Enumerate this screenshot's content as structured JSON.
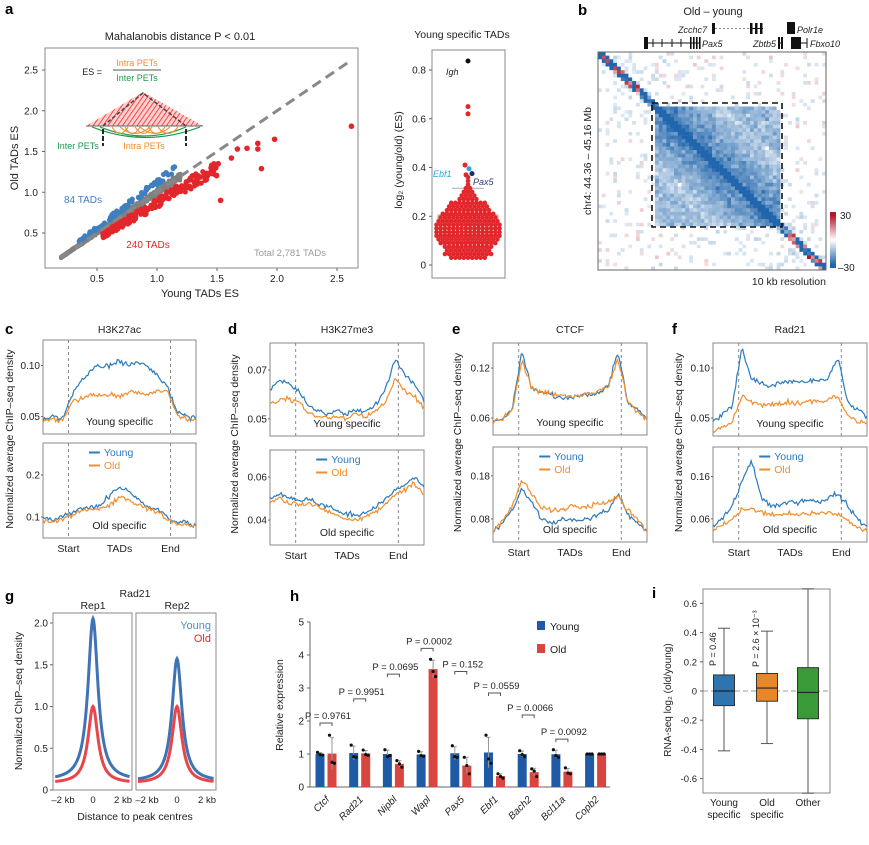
{
  "panel_labels": {
    "a": "a",
    "b": "b",
    "c": "c",
    "d": "d",
    "e": "e",
    "f": "f",
    "g": "g",
    "h": "h",
    "i": "i"
  },
  "colors": {
    "young_blue": "#2b7bbd",
    "old_orange": "#f28e2b",
    "scatter_gray": "#808080",
    "young_scatter": "#3f7fbf",
    "old_red": "#e3262b",
    "bar_young": "#1f5aa6",
    "bar_old": "#d9453f",
    "box_young": "#2e75b0",
    "box_old": "#e8872a",
    "box_other": "#3a9a3a",
    "heat_low": "#2166ac",
    "heat_high": "#b2182b"
  },
  "chart_data": [
    {
      "id": "a-scatter",
      "type": "scatter",
      "title": "Mahalanobis distance P < 0.01",
      "xlabel": "Young TADs ES",
      "ylabel": "Old TADs ES",
      "xlim": [
        0.15,
        2.75
      ],
      "ylim": [
        0.15,
        2.75
      ],
      "xticks": [
        "0.5",
        "1.0",
        "1.5",
        "2.0",
        "2.5"
      ],
      "yticks": [
        "0.5",
        "1.0",
        "1.5",
        "2.0",
        "2.5"
      ],
      "diagonal": "y = x (dashed)",
      "annotations": {
        "young_count": "84 TADs",
        "old_count": "240 TADs",
        "total": "Total 2,781 TADs"
      },
      "counts": {
        "young_specific": 84,
        "old_specific": 240,
        "total": 2781
      },
      "red_outliers": [
        [
          2.62,
          1.81
        ],
        [
          1.98,
          1.65
        ],
        [
          1.84,
          1.6
        ],
        [
          1.75,
          1.54
        ],
        [
          1.67,
          1.53
        ],
        [
          1.84,
          1.53
        ],
        [
          1.87,
          1.29
        ],
        [
          1.62,
          1.42
        ],
        [
          1.53,
          0.9
        ],
        [
          1.51,
          1.35
        ],
        [
          1.49,
          1.3
        ],
        [
          1.45,
          1.25
        ],
        [
          1.42,
          1.2
        ]
      ],
      "inset": {
        "es_label": "ES =",
        "numerator": "Intra PETs",
        "denominator": "Inter PETs",
        "inter_label": "Inter PETs",
        "intra_label": "Intra PETs"
      }
    },
    {
      "id": "a-swarm",
      "type": "swarm",
      "title": "Young specific TADs",
      "ylabel": "log₂ (young/old) (ES)",
      "ylim": [
        0,
        0.88
      ],
      "yticks": [
        "0",
        "0.2",
        "0.4",
        "0.6",
        "0.8"
      ],
      "box": {
        "q1": 0.125,
        "q3": 0.205,
        "upper_whisker": 0.315
      },
      "bins": [
        [
          0.03,
          9
        ],
        [
          0.045,
          12
        ],
        [
          0.06,
          11
        ],
        [
          0.075,
          12
        ],
        [
          0.09,
          14
        ],
        [
          0.105,
          15
        ],
        [
          0.12,
          16
        ],
        [
          0.135,
          16
        ],
        [
          0.15,
          16
        ],
        [
          0.165,
          16
        ],
        [
          0.18,
          15
        ],
        [
          0.195,
          14
        ],
        [
          0.21,
          13
        ],
        [
          0.225,
          11
        ],
        [
          0.24,
          10
        ],
        [
          0.255,
          9
        ],
        [
          0.27,
          5
        ],
        [
          0.285,
          4
        ],
        [
          0.3,
          3
        ],
        [
          0.315,
          2
        ],
        [
          0.33,
          1
        ],
        [
          0.345,
          1
        ],
        [
          0.36,
          1
        ]
      ],
      "outliers": [
        {
          "value": 0.837,
          "color": "#111111"
        },
        {
          "value": 0.65,
          "color": "#e3262b"
        },
        {
          "value": 0.62,
          "color": "#e3262b"
        },
        {
          "value": 0.41,
          "color": "#e3262b"
        },
        {
          "value": 0.395,
          "color": "#29a8e0"
        },
        {
          "value": 0.375,
          "color": "#1a2a6c"
        },
        {
          "value": 0.37,
          "color": "#e3262b"
        }
      ],
      "gene_labels": {
        "igh": "Igh",
        "ebf1": "Ebf1",
        "pax5": "Pax5"
      }
    },
    {
      "id": "b-heatmap",
      "type": "heatmap",
      "title": "Old – young",
      "ylabel": "chr4: 44.36 – 45.16 Mb",
      "resolution": "10 kb resolution",
      "colorbar": {
        "min": -30,
        "max": 30,
        "max_label": "30",
        "min_label": "–30"
      },
      "genes": {
        "zcchc7": "Zcchc7",
        "polr1e": "Polr1e",
        "pax5": "Pax5",
        "zbtb5": "Zbtb5",
        "fbxo10": "Fbxo10"
      }
    },
    {
      "id": "c",
      "type": "line",
      "title": "H3K27ac",
      "ylabel": "Normalized average ChIP–seq density",
      "xticks": [
        "Start",
        "TADs",
        "End"
      ],
      "legend": [
        "Young",
        "Old"
      ],
      "top": {
        "label": "Young specific",
        "ylim": [
          0.033,
          0.125
        ],
        "yticks": [
          {
            "v": 0.05,
            "t": "0.05"
          },
          {
            "v": 0.1,
            "t": "0.10"
          }
        ],
        "young": [
          0.047,
          0.05,
          0.047,
          0.07,
          0.085,
          0.095,
          0.1,
          0.1,
          0.105,
          0.1,
          0.105,
          0.098,
          0.09,
          0.08,
          0.055,
          0.05,
          0.048
        ],
        "old": [
          0.046,
          0.048,
          0.046,
          0.064,
          0.068,
          0.072,
          0.07,
          0.072,
          0.07,
          0.074,
          0.073,
          0.072,
          0.075,
          0.076,
          0.052,
          0.048,
          0.047
        ]
      },
      "bottom": {
        "label": "Old specific",
        "ylim": [
          0.05,
          0.276
        ],
        "yticks": [
          {
            "v": 0.1,
            "t": "0.1"
          },
          {
            "v": 0.2,
            "t": "0.2"
          }
        ],
        "young": [
          0.1,
          0.095,
          0.1,
          0.11,
          0.12,
          0.125,
          0.13,
          0.15,
          0.17,
          0.16,
          0.14,
          0.125,
          0.12,
          0.1,
          0.09,
          0.085,
          0.08
        ],
        "old": [
          0.09,
          0.09,
          0.095,
          0.105,
          0.115,
          0.118,
          0.12,
          0.13,
          0.145,
          0.14,
          0.13,
          0.12,
          0.11,
          0.095,
          0.085,
          0.08,
          0.075
        ]
      }
    },
    {
      "id": "d",
      "type": "line",
      "title": "H3K27me3",
      "ylabel": "Normalized average ChIP–seq density",
      "xticks": [
        "Start",
        "TADs",
        "End"
      ],
      "legend": [
        "Young",
        "Old"
      ],
      "top": {
        "label": "Young specific",
        "ylim": [
          0.043,
          0.081
        ],
        "yticks": [
          {
            "v": 0.05,
            "t": "0.05"
          },
          {
            "v": 0.07,
            "t": "0.07"
          }
        ],
        "young": [
          0.062,
          0.066,
          0.064,
          0.062,
          0.055,
          0.053,
          0.052,
          0.053,
          0.052,
          0.054,
          0.053,
          0.056,
          0.062,
          0.074,
          0.068,
          0.064,
          0.058
        ],
        "old": [
          0.056,
          0.058,
          0.058,
          0.057,
          0.052,
          0.051,
          0.05,
          0.051,
          0.05,
          0.052,
          0.051,
          0.053,
          0.057,
          0.066,
          0.062,
          0.059,
          0.055
        ]
      },
      "bottom": {
        "label": "Old specific",
        "ylim": [
          0.0284,
          0.0726
        ],
        "yticks": [
          {
            "v": 0.04,
            "t": "0.04"
          },
          {
            "v": 0.06,
            "t": "0.06"
          }
        ],
        "young": [
          0.05,
          0.052,
          0.05,
          0.049,
          0.05,
          0.048,
          0.046,
          0.044,
          0.043,
          0.042,
          0.044,
          0.046,
          0.05,
          0.054,
          0.056,
          0.06,
          0.055
        ],
        "old": [
          0.048,
          0.05,
          0.048,
          0.047,
          0.048,
          0.046,
          0.044,
          0.042,
          0.041,
          0.04,
          0.042,
          0.044,
          0.048,
          0.052,
          0.054,
          0.057,
          0.052
        ]
      }
    },
    {
      "id": "e",
      "type": "line",
      "title": "CTCF",
      "ylabel": "Normalized average ChIP–seq density",
      "xticks": [
        "Start",
        "TADs",
        "End"
      ],
      "legend": [
        "Young",
        "Old"
      ],
      "top": {
        "label": "Young specific",
        "ylim": [
          0.0396,
          0.15
        ],
        "yticks": [
          {
            "v": 0.06,
            "t": "0.06"
          },
          {
            "v": 0.12,
            "t": "0.12"
          }
        ],
        "young": [
          0.055,
          0.06,
          0.07,
          0.14,
          0.095,
          0.09,
          0.088,
          0.085,
          0.085,
          0.086,
          0.088,
          0.09,
          0.1,
          0.14,
          0.08,
          0.07,
          0.058
        ],
        "old": [
          0.054,
          0.06,
          0.069,
          0.13,
          0.097,
          0.091,
          0.089,
          0.086,
          0.087,
          0.087,
          0.089,
          0.091,
          0.1,
          0.13,
          0.08,
          0.068,
          0.057
        ]
      },
      "bottom": {
        "label": "Old specific",
        "ylim": [
          0.0265,
          0.247
        ],
        "yticks": [
          {
            "v": 0.08,
            "t": "0.08"
          },
          {
            "v": 0.18,
            "t": "0.18"
          }
        ],
        "young": [
          0.05,
          0.07,
          0.1,
          0.15,
          0.12,
          0.08,
          0.07,
          0.075,
          0.08,
          0.075,
          0.08,
          0.09,
          0.1,
          0.14,
          0.09,
          0.07,
          0.05
        ],
        "old": [
          0.05,
          0.075,
          0.11,
          0.17,
          0.14,
          0.11,
          0.1,
          0.1,
          0.11,
          0.105,
          0.11,
          0.115,
          0.12,
          0.13,
          0.1,
          0.08,
          0.05
        ]
      }
    },
    {
      "id": "f",
      "type": "line",
      "title": "Rad21",
      "ylabel": "Normalized average ChIP–seq density",
      "xticks": [
        "Start",
        "TADs",
        "End"
      ],
      "legend": [
        "Young",
        "Old"
      ],
      "top": {
        "label": "Young specific",
        "ylim": [
          0.032,
          0.125
        ],
        "yticks": [
          {
            "v": 0.05,
            "t": "0.05"
          },
          {
            "v": 0.1,
            "t": "0.10"
          }
        ],
        "young": [
          0.045,
          0.055,
          0.062,
          0.12,
          0.088,
          0.085,
          0.083,
          0.085,
          0.087,
          0.086,
          0.088,
          0.087,
          0.09,
          0.11,
          0.065,
          0.058,
          0.052
        ],
        "old": [
          0.037,
          0.042,
          0.046,
          0.072,
          0.066,
          0.064,
          0.063,
          0.064,
          0.066,
          0.065,
          0.067,
          0.066,
          0.068,
          0.072,
          0.052,
          0.047,
          0.044
        ]
      },
      "bottom": {
        "label": "Old specific",
        "ylim": [
          0.005,
          0.23
        ],
        "yticks": [
          {
            "v": 0.06,
            "t": "0.06"
          },
          {
            "v": 0.16,
            "t": "0.16"
          }
        ],
        "young": [
          0.04,
          0.06,
          0.09,
          0.15,
          0.2,
          0.11,
          0.09,
          0.095,
          0.1,
          0.1,
          0.105,
          0.1,
          0.11,
          0.12,
          0.09,
          0.06,
          0.04
        ],
        "old": [
          0.03,
          0.045,
          0.06,
          0.08,
          0.085,
          0.075,
          0.068,
          0.07,
          0.072,
          0.07,
          0.073,
          0.07,
          0.072,
          0.07,
          0.055,
          0.04,
          0.03
        ]
      }
    },
    {
      "id": "g",
      "type": "line",
      "title": "Rad21",
      "ylabel": "Normalized ChIP–seq density",
      "xlabel": "Distance to peak centres",
      "xticks": [
        "–2 kb",
        "0",
        "2 kb"
      ],
      "ylim": [
        0,
        2.1
      ],
      "yticks": [
        "0",
        "0.5",
        "1.0",
        "1.5",
        "2.0"
      ],
      "legend": [
        "Young",
        "Old"
      ],
      "replicates": [
        {
          "name": "Rep1",
          "young_peak": 2.05,
          "old_peak": 1.0,
          "young_base": 0.11,
          "old_base": 0.08
        },
        {
          "name": "Rep2",
          "young_peak": 1.57,
          "old_peak": 1.0,
          "young_base": 0.1,
          "old_base": 0.08
        }
      ]
    },
    {
      "id": "h",
      "type": "bar",
      "ylabel": "Relative expression",
      "ylim": [
        0,
        5
      ],
      "yticks": [
        "0",
        "1",
        "2",
        "3",
        "4",
        "5"
      ],
      "legend": [
        "Young",
        "Old"
      ],
      "categories": [
        "Ctcf",
        "Rad21",
        "Nipbl",
        "Wapl",
        "Pax5",
        "Ebf1",
        "Bach2",
        "Bcl11a",
        "Copb2"
      ],
      "young_replicates": [
        [
          1.05,
          0.98,
          0.97
        ],
        [
          1.27,
          0.92,
          0.9
        ],
        [
          1.13,
          0.92,
          0.95
        ],
        [
          1.08,
          0.95,
          0.93
        ],
        [
          1.25,
          0.92,
          0.9
        ],
        [
          1.57,
          0.85,
          0.72
        ],
        [
          1.1,
          0.98,
          0.92
        ],
        [
          1.13,
          0.95,
          0.9
        ],
        [
          1,
          1,
          1
        ]
      ],
      "old_replicates": [
        [
          1.57,
          0.75,
          0.72
        ],
        [
          1.12,
          0.98,
          0.96
        ],
        [
          0.8,
          0.7,
          0.6
        ],
        [
          3.87,
          3.5,
          3.35
        ],
        [
          0.9,
          0.65,
          0.4
        ],
        [
          0.4,
          0.32,
          0.27
        ],
        [
          0.55,
          0.48,
          0.32
        ],
        [
          0.58,
          0.42,
          0.4
        ],
        [
          1,
          1,
          1
        ]
      ],
      "p_values": [
        "P = 0.9761",
        "P = 0.9951",
        "P = 0.0695",
        "P = 0.0002",
        "P = 0.152",
        "P = 0.0559",
        "P = 0.0066",
        "P = 0.0092"
      ]
    },
    {
      "id": "i",
      "type": "box",
      "ylabel": "RNA-seq log₂ (old/young)",
      "ylim": [
        -0.7,
        0.7
      ],
      "yticks": [
        "-0.6",
        "-0.4",
        "-0.2",
        "0",
        "0.2",
        "0.4",
        "0.6"
      ],
      "categories": [
        [
          "Young",
          "specific"
        ],
        [
          "Old",
          "specific"
        ],
        [
          "Other"
        ]
      ],
      "boxes": [
        {
          "q1": -0.1,
          "median": 0,
          "q3": 0.11,
          "low": -0.41,
          "high": 0.43
        },
        {
          "q1": -0.07,
          "median": 0.02,
          "q3": 0.12,
          "low": -0.36,
          "high": 0.41
        },
        {
          "q1": -0.19,
          "median": -0.01,
          "q3": 0.16,
          "low": -0.7,
          "high": 0.7
        }
      ],
      "p_values": [
        "P = 0.46",
        "P = 2.6 × 10⁻³"
      ]
    }
  ]
}
